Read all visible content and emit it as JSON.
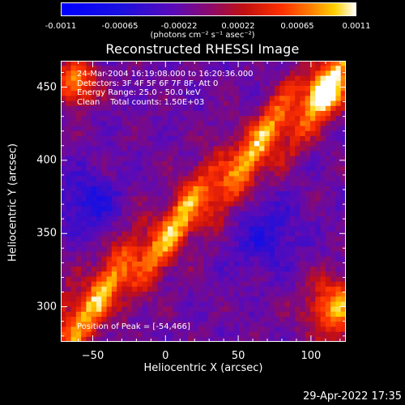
{
  "colorbar": {
    "ticks": [
      "-0.0011",
      "-0.00065",
      "-0.00022",
      "0.00022",
      "0.00065",
      "0.0011"
    ],
    "units": "(photons cm⁻² s⁻¹ asec⁻²)"
  },
  "chart_data": {
    "type": "heatmap",
    "title": "Reconstructed RHESSI Image",
    "xlabel": "Heliocentric X (arcsec)",
    "ylabel": "Heliocentric Y (arcsec)",
    "xlim": [
      -72,
      124
    ],
    "ylim": [
      276,
      468
    ],
    "xticks": [
      -50,
      0,
      50,
      100
    ],
    "yticks": [
      300,
      350,
      400,
      450
    ],
    "colorbar_range": [
      -0.0011,
      0.0011
    ],
    "annotations": [
      "24-Mar-2004 16:19:08.000 to 16:20:36.000",
      "Detectors: 3F 4F 5F 6F 7F 8F, Att 0",
      "Energy Range: 25.0 - 50.0 keV",
      "Clean    Total counts: 1.50E+03"
    ],
    "peak_label": "Position of Peak = [-54,466]",
    "peak": [
      -54,
      466
    ]
  },
  "timestamp": "29-Apr-2022 17:35"
}
